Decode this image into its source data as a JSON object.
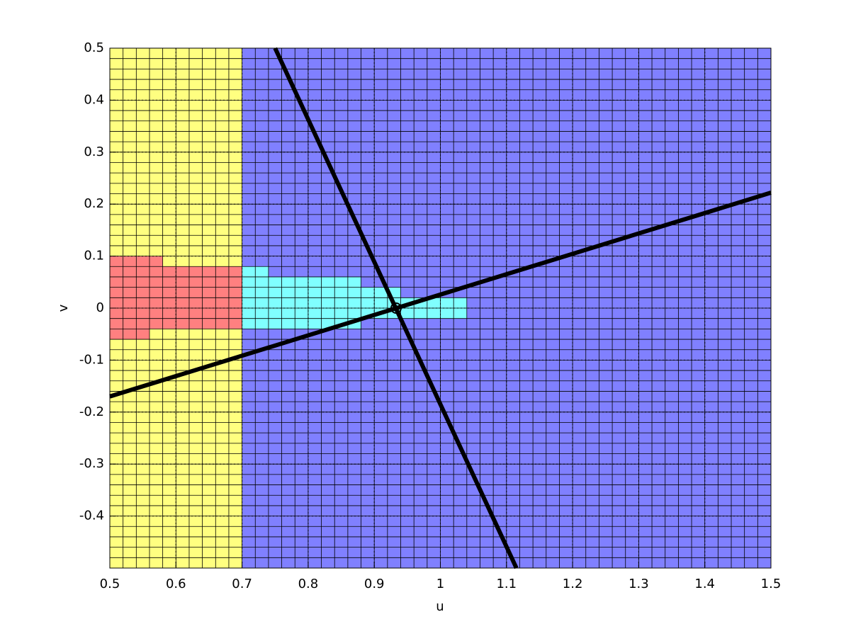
{
  "chart_data": {
    "type": "region_map",
    "x_label": "u",
    "y_label": "v",
    "xlim": [
      0.5,
      1.5
    ],
    "ylim": [
      -0.5,
      0.5
    ],
    "xticks": [
      0.5,
      0.6,
      0.7,
      0.8,
      0.9,
      1,
      1.1,
      1.2,
      1.3,
      1.4,
      1.5
    ],
    "yticks": [
      -0.4,
      -0.3,
      -0.2,
      -0.1,
      0,
      0.1,
      0.2,
      0.3,
      0.4,
      0.5
    ],
    "grid": true,
    "regions": [
      {
        "u": [
          0.5,
          0.7
        ],
        "v": [
          -0.5,
          0.5
        ],
        "color": "#ffff80"
      },
      {
        "u": [
          0.7,
          1.5
        ],
        "v": [
          -0.5,
          0.5
        ],
        "color": "#8080ff"
      },
      {
        "u": [
          0.5,
          0.58
        ],
        "v": [
          0.08,
          0.1
        ],
        "color": "#ff8080"
      },
      {
        "u": [
          0.5,
          0.7
        ],
        "v": [
          -0.04,
          0.08
        ],
        "color": "#ff8080"
      },
      {
        "u": [
          0.5,
          0.56
        ],
        "v": [
          -0.06,
          -0.04
        ],
        "color": "#ff8080"
      },
      {
        "u": [
          0.7,
          0.74
        ],
        "v": [
          -0.04,
          0.08
        ],
        "color": "#80ffff"
      },
      {
        "u": [
          0.74,
          0.88
        ],
        "v": [
          -0.04,
          0.06
        ],
        "color": "#80ffff"
      },
      {
        "u": [
          0.88,
          0.94
        ],
        "v": [
          -0.02,
          0.04
        ],
        "color": "#80ffff"
      },
      {
        "u": [
          0.94,
          1.04
        ],
        "v": [
          -0.02,
          0.02
        ],
        "color": "#80ffff"
      }
    ],
    "lines": [
      {
        "x": [
          0.5,
          1.5
        ],
        "y": [
          -0.17,
          0.222
        ],
        "color": "#000000"
      },
      {
        "x": [
          0.75,
          1.115
        ],
        "y": [
          0.5,
          -0.5
        ],
        "color": "#000000"
      }
    ],
    "points": {
      "x": [
        0.933
      ],
      "y": [
        0.0
      ],
      "color": "#000000"
    }
  }
}
